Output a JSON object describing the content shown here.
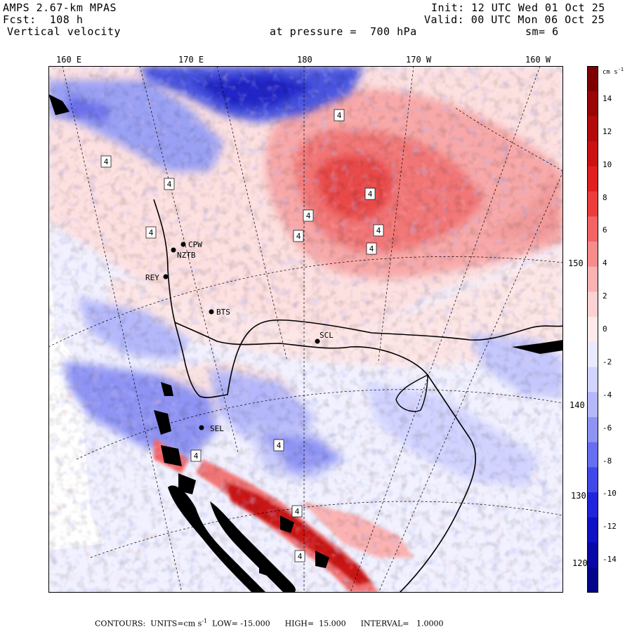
{
  "header": {
    "model": "AMPS 2.67-km MPAS",
    "forecast": "Fcst:  108 h",
    "field": "Vertical velocity",
    "init": "Init: 12 UTC Wed 01 Oct 25",
    "valid": "Valid: 00 UTC Mon 06 Oct 25",
    "level": "at pressure =  700 hPa",
    "smoothing": "sm= 6"
  },
  "longitude_labels": [
    "160 E",
    "170 E",
    "180",
    "170 W",
    "160 W"
  ],
  "latitude_labels": [
    "150 W",
    "140 W",
    "130 W",
    "120 W"
  ],
  "colorbar": {
    "units_text": "cm s",
    "units_exp": "-1",
    "tick_labels": [
      "14",
      "12",
      "10",
      "8",
      "6",
      "4",
      "2",
      "0",
      "-2",
      "-4",
      "-6",
      "-8",
      "-10",
      "-12",
      "-14"
    ],
    "colors": [
      "#7f0000",
      "#9a0505",
      "#b30b0b",
      "#cb1212",
      "#e01f1f",
      "#ec3d3d",
      "#f46464",
      "#f88c8c",
      "#fbb2b2",
      "#fdd2d2",
      "#feeaea",
      "#eaeaff",
      "#d2d4ff",
      "#b4b8fb",
      "#8f94f4",
      "#686ef0",
      "#4049e8",
      "#2025dc",
      "#1010c4",
      "#0808a6",
      "#04048a"
    ]
  },
  "stations": [
    "CPW",
    "NZTB",
    "REY",
    "BTS",
    "SCL",
    "SEL"
  ],
  "contour_label": "4",
  "footer": {
    "prefix": "CONTOURS:  UNITS=cm s",
    "exp": "-1",
    "suffix": "  LOW= -15.000      HIGH=  15.000      INTERVAL=   1.0000"
  }
}
